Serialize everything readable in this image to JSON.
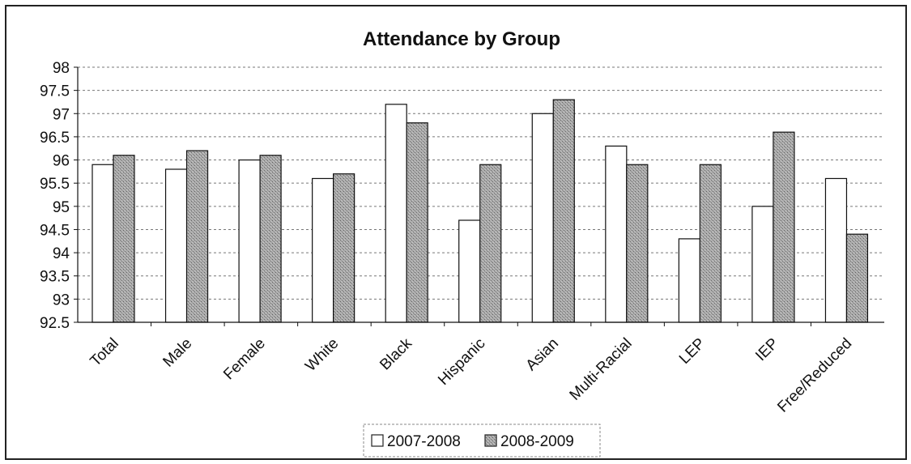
{
  "chart_data": {
    "type": "bar",
    "title": "Attendance by Group",
    "categories": [
      "Total",
      "Male",
      "Female",
      "White",
      "Black",
      "Hispanic",
      "Asian",
      "Multi-Racial",
      "LEP",
      "IEP",
      "Free/Reduced"
    ],
    "series": [
      {
        "name": "2007-2008",
        "values": [
          95.9,
          95.8,
          96.0,
          95.6,
          97.2,
          94.7,
          97.0,
          96.3,
          94.3,
          95.0,
          95.6
        ],
        "color": "#ffffff"
      },
      {
        "name": "2008-2009",
        "values": [
          96.1,
          96.2,
          96.1,
          95.7,
          96.8,
          95.9,
          97.3,
          95.9,
          95.9,
          96.6,
          94.4
        ],
        "color": "#b8b8b8"
      }
    ],
    "ylim": [
      92.5,
      98
    ],
    "yticks": [
      "92.5",
      "93",
      "93.5",
      "94",
      "94.5",
      "95",
      "95.5",
      "96",
      "96.5",
      "97",
      "97.5",
      "98"
    ],
    "grid": true,
    "legend_position": "bottom"
  }
}
